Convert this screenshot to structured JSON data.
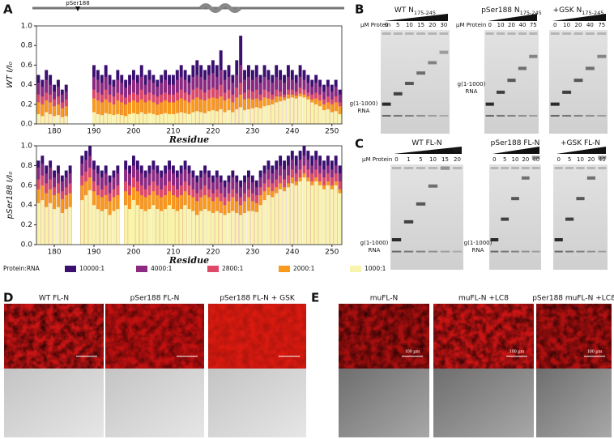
{
  "chart_data": [
    {
      "type": "bar",
      "ylabel": "WT I/I₀",
      "xlabel": "Residue",
      "x": [
        176,
        177,
        178,
        179,
        180,
        181,
        182,
        183,
        184,
        185,
        186,
        187,
        188,
        189,
        190,
        191,
        192,
        193,
        194,
        195,
        196,
        197,
        198,
        199,
        200,
        201,
        202,
        203,
        204,
        205,
        206,
        207,
        208,
        209,
        210,
        211,
        212,
        213,
        214,
        215,
        216,
        217,
        218,
        219,
        220,
        221,
        222,
        223,
        224,
        225,
        226,
        227,
        228,
        229,
        230,
        231,
        232,
        233,
        234,
        235,
        236,
        237,
        238,
        239,
        240,
        241,
        242,
        243,
        244,
        245,
        246,
        247,
        248,
        249,
        250,
        251,
        252
      ],
      "xlim": [
        175.5,
        252.5
      ],
      "xticks": [
        180,
        190,
        200,
        210,
        220,
        230,
        240,
        250
      ],
      "ylim": [
        0,
        1
      ],
      "yticks": [
        {
          "value": 0,
          "label": "0.0"
        },
        {
          "value": 0.2,
          "label": "0.2"
        },
        {
          "value": 0.4,
          "label": "0.4"
        },
        {
          "value": 0.6,
          "label": "0.6"
        },
        {
          "value": 0.8,
          "label": "0.8"
        },
        {
          "value": 1,
          "label": "1.0"
        }
      ],
      "series": [
        {
          "name": "10000:1",
          "color": "#3b0f70",
          "values": [
            0.5,
            0.45,
            0.55,
            0.5,
            0.4,
            0.45,
            0.35,
            0.4,
            null,
            null,
            null,
            null,
            null,
            null,
            0.6,
            0.55,
            0.5,
            0.6,
            0.5,
            0.45,
            0.55,
            0.5,
            0.45,
            0.5,
            0.55,
            0.5,
            0.6,
            0.5,
            0.55,
            0.5,
            0.45,
            0.5,
            0.55,
            0.5,
            0.5,
            0.55,
            0.6,
            0.55,
            0.5,
            0.6,
            0.65,
            0.6,
            0.55,
            0.6,
            0.65,
            0.6,
            0.75,
            0.55,
            0.6,
            0.5,
            0.65,
            0.9,
            0.55,
            0.6,
            0.55,
            0.6,
            0.5,
            0.6,
            0.55,
            0.5,
            0.6,
            0.55,
            0.5,
            0.6,
            0.55,
            0.5,
            0.6,
            0.55,
            0.5,
            0.45,
            0.5,
            0.45,
            0.4,
            0.45,
            0.4,
            0.45,
            0.35
          ]
        },
        {
          "name": "4000:1",
          "color": "#8c2981",
          "values": [
            0.42,
            0.38,
            0.45,
            0.4,
            0.33,
            0.38,
            0.3,
            0.33,
            null,
            null,
            null,
            null,
            null,
            null,
            0.48,
            0.45,
            0.42,
            0.48,
            0.4,
            0.38,
            0.45,
            0.42,
            0.37,
            0.4,
            0.45,
            0.42,
            0.48,
            0.4,
            0.45,
            0.42,
            0.38,
            0.42,
            0.45,
            0.4,
            0.4,
            0.45,
            0.48,
            0.45,
            0.42,
            0.48,
            0.5,
            0.48,
            0.45,
            0.5,
            0.52,
            0.48,
            0.55,
            0.45,
            0.48,
            0.42,
            0.5,
            0.6,
            0.45,
            0.48,
            0.45,
            0.48,
            0.42,
            0.48,
            0.45,
            0.42,
            0.48,
            0.45,
            0.42,
            0.48,
            0.45,
            0.42,
            0.48,
            0.45,
            0.42,
            0.38,
            0.42,
            0.38,
            0.33,
            0.38,
            0.33,
            0.38,
            0.3
          ]
        },
        {
          "name": "2800:1",
          "color": "#de4968",
          "values": [
            0.3,
            0.28,
            0.32,
            0.3,
            0.25,
            0.28,
            0.22,
            0.25,
            null,
            null,
            null,
            null,
            null,
            null,
            0.35,
            0.32,
            0.3,
            0.35,
            0.3,
            0.28,
            0.32,
            0.3,
            0.27,
            0.3,
            0.32,
            0.3,
            0.35,
            0.3,
            0.32,
            0.3,
            0.28,
            0.3,
            0.32,
            0.3,
            0.3,
            0.32,
            0.35,
            0.32,
            0.3,
            0.35,
            0.37,
            0.35,
            0.32,
            0.35,
            0.37,
            0.35,
            0.4,
            0.32,
            0.35,
            0.3,
            0.37,
            0.42,
            0.32,
            0.35,
            0.33,
            0.35,
            0.3,
            0.35,
            0.33,
            0.3,
            0.35,
            0.33,
            0.3,
            0.35,
            0.35,
            0.33,
            0.37,
            0.35,
            0.32,
            0.3,
            0.32,
            0.3,
            0.25,
            0.28,
            0.25,
            0.28,
            0.22
          ]
        },
        {
          "name": "2000:1",
          "color": "#f89a1c",
          "values": [
            0.22,
            0.2,
            0.24,
            0.22,
            0.18,
            0.2,
            0.16,
            0.18,
            null,
            null,
            null,
            null,
            null,
            null,
            0.26,
            0.24,
            0.22,
            0.25,
            0.22,
            0.2,
            0.24,
            0.22,
            0.2,
            0.22,
            0.24,
            0.22,
            0.25,
            0.22,
            0.24,
            0.22,
            0.2,
            0.22,
            0.24,
            0.22,
            0.22,
            0.24,
            0.26,
            0.24,
            0.22,
            0.25,
            0.27,
            0.25,
            0.24,
            0.26,
            0.27,
            0.26,
            0.28,
            0.24,
            0.26,
            0.22,
            0.27,
            0.3,
            0.25,
            0.26,
            0.25,
            0.26,
            0.24,
            0.27,
            0.26,
            0.25,
            0.28,
            0.28,
            0.27,
            0.3,
            0.3,
            0.29,
            0.31,
            0.3,
            0.28,
            0.25,
            0.26,
            0.24,
            0.2,
            0.22,
            0.2,
            0.22,
            0.18
          ]
        },
        {
          "name": "1000:1",
          "color": "#f8f4ad",
          "values": [
            0.1,
            0.08,
            0.12,
            0.1,
            0.08,
            0.09,
            0.07,
            0.08,
            null,
            null,
            null,
            null,
            null,
            null,
            0.12,
            0.1,
            0.09,
            0.11,
            0.1,
            0.09,
            0.1,
            0.09,
            0.08,
            0.1,
            0.11,
            0.1,
            0.12,
            0.1,
            0.11,
            0.1,
            0.09,
            0.1,
            0.11,
            0.1,
            0.1,
            0.11,
            0.12,
            0.11,
            0.1,
            0.12,
            0.13,
            0.12,
            0.11,
            0.13,
            0.14,
            0.13,
            0.15,
            0.12,
            0.14,
            0.12,
            0.15,
            0.17,
            0.14,
            0.15,
            0.16,
            0.17,
            0.16,
            0.18,
            0.19,
            0.2,
            0.22,
            0.23,
            0.24,
            0.26,
            0.27,
            0.26,
            0.28,
            0.27,
            0.25,
            0.22,
            0.2,
            0.18,
            0.14,
            0.15,
            0.12,
            0.13,
            0.1
          ]
        }
      ]
    },
    {
      "type": "bar",
      "ylabel": "pSer188 I/I₀",
      "xlabel": "Residue",
      "x": [
        176,
        177,
        178,
        179,
        180,
        181,
        182,
        183,
        184,
        185,
        186,
        187,
        188,
        189,
        190,
        191,
        192,
        193,
        194,
        195,
        196,
        197,
        198,
        199,
        200,
        201,
        202,
        203,
        204,
        205,
        206,
        207,
        208,
        209,
        210,
        211,
        212,
        213,
        214,
        215,
        216,
        217,
        218,
        219,
        220,
        221,
        222,
        223,
        224,
        225,
        226,
        227,
        228,
        229,
        230,
        231,
        232,
        233,
        234,
        235,
        236,
        237,
        238,
        239,
        240,
        241,
        242,
        243,
        244,
        245,
        246,
        247,
        248,
        249,
        250,
        251,
        252
      ],
      "xlim": [
        175.5,
        252.5
      ],
      "xticks": [
        180,
        190,
        200,
        210,
        220,
        230,
        240,
        250
      ],
      "ylim": [
        0,
        1
      ],
      "yticks": [
        {
          "value": 0,
          "label": "0.0"
        },
        {
          "value": 0.2,
          "label": "0.2"
        },
        {
          "value": 0.4,
          "label": "0.4"
        },
        {
          "value": 0.6,
          "label": "0.6"
        },
        {
          "value": 0.8,
          "label": "0.8"
        },
        {
          "value": 1,
          "label": "1.0"
        }
      ],
      "series": [
        {
          "color": "#3b0f70",
          "values": [
            0.85,
            0.9,
            0.8,
            0.85,
            0.75,
            0.8,
            0.7,
            0.75,
            0.8,
            null,
            null,
            0.9,
            0.95,
            1.0,
            0.85,
            0.8,
            0.75,
            0.8,
            0.7,
            0.75,
            0.8,
            null,
            0.85,
            0.8,
            0.9,
            0.85,
            0.8,
            0.75,
            0.8,
            0.85,
            0.8,
            0.75,
            0.8,
            0.85,
            0.8,
            0.75,
            0.8,
            0.85,
            0.8,
            0.75,
            0.7,
            0.75,
            0.8,
            0.75,
            0.7,
            0.75,
            0.7,
            0.65,
            0.7,
            0.75,
            0.7,
            0.65,
            0.7,
            0.75,
            0.7,
            0.65,
            0.75,
            0.8,
            0.85,
            0.8,
            0.85,
            0.9,
            0.85,
            0.9,
            0.95,
            0.9,
            0.95,
            1.0,
            0.95,
            0.9,
            0.95,
            0.9,
            0.85,
            0.9,
            0.85,
            0.9,
            0.8
          ]
        },
        {
          "color": "#8c2981",
          "values": [
            0.78,
            0.82,
            0.72,
            0.78,
            0.68,
            0.72,
            0.64,
            0.68,
            0.72,
            null,
            null,
            0.82,
            0.86,
            0.9,
            0.76,
            0.72,
            0.68,
            0.72,
            0.63,
            0.68,
            0.72,
            null,
            0.76,
            0.72,
            0.8,
            0.76,
            0.72,
            0.68,
            0.72,
            0.76,
            0.72,
            0.68,
            0.72,
            0.76,
            0.72,
            0.68,
            0.72,
            0.76,
            0.72,
            0.68,
            0.63,
            0.68,
            0.72,
            0.68,
            0.63,
            0.68,
            0.63,
            0.58,
            0.63,
            0.68,
            0.63,
            0.58,
            0.63,
            0.68,
            0.63,
            0.58,
            0.68,
            0.72,
            0.76,
            0.72,
            0.76,
            0.8,
            0.76,
            0.8,
            0.86,
            0.8,
            0.86,
            0.9,
            0.86,
            0.8,
            0.86,
            0.8,
            0.76,
            0.8,
            0.76,
            0.8,
            0.72
          ]
        },
        {
          "color": "#de4968",
          "values": [
            0.66,
            0.7,
            0.62,
            0.66,
            0.58,
            0.62,
            0.54,
            0.58,
            0.62,
            null,
            null,
            0.7,
            0.74,
            0.78,
            0.64,
            0.6,
            0.56,
            0.6,
            0.52,
            0.56,
            0.6,
            null,
            0.64,
            0.6,
            0.68,
            0.64,
            0.6,
            0.56,
            0.6,
            0.64,
            0.6,
            0.56,
            0.6,
            0.64,
            0.6,
            0.56,
            0.6,
            0.64,
            0.6,
            0.56,
            0.52,
            0.56,
            0.6,
            0.56,
            0.52,
            0.56,
            0.52,
            0.48,
            0.52,
            0.56,
            0.52,
            0.48,
            0.52,
            0.56,
            0.52,
            0.5,
            0.58,
            0.62,
            0.66,
            0.62,
            0.66,
            0.7,
            0.66,
            0.7,
            0.76,
            0.72,
            0.76,
            0.8,
            0.76,
            0.72,
            0.76,
            0.72,
            0.68,
            0.72,
            0.68,
            0.72,
            0.64
          ]
        },
        {
          "color": "#f89a1c",
          "values": [
            0.56,
            0.6,
            0.52,
            0.56,
            0.5,
            0.52,
            0.46,
            0.5,
            0.52,
            null,
            null,
            0.6,
            0.64,
            0.68,
            0.54,
            0.5,
            0.48,
            0.5,
            0.44,
            0.48,
            0.5,
            null,
            0.54,
            0.5,
            0.58,
            0.54,
            0.5,
            0.48,
            0.5,
            0.54,
            0.5,
            0.48,
            0.5,
            0.54,
            0.5,
            0.48,
            0.5,
            0.54,
            0.5,
            0.48,
            0.44,
            0.48,
            0.5,
            0.48,
            0.44,
            0.48,
            0.44,
            0.4,
            0.44,
            0.48,
            0.44,
            0.4,
            0.44,
            0.48,
            0.44,
            0.42,
            0.5,
            0.54,
            0.58,
            0.54,
            0.58,
            0.62,
            0.58,
            0.62,
            0.68,
            0.64,
            0.68,
            0.72,
            0.68,
            0.64,
            0.68,
            0.64,
            0.6,
            0.64,
            0.6,
            0.64,
            0.56
          ]
        },
        {
          "color": "#f8f4ad",
          "values": [
            0.42,
            0.45,
            0.38,
            0.42,
            0.36,
            0.38,
            0.32,
            0.36,
            0.38,
            null,
            null,
            0.45,
            0.5,
            0.55,
            0.4,
            0.36,
            0.34,
            0.36,
            0.3,
            0.34,
            0.36,
            null,
            0.4,
            0.36,
            0.45,
            0.4,
            0.36,
            0.34,
            0.36,
            0.4,
            0.36,
            0.34,
            0.36,
            0.4,
            0.36,
            0.34,
            0.36,
            0.4,
            0.36,
            0.34,
            0.3,
            0.34,
            0.36,
            0.34,
            0.32,
            0.34,
            0.32,
            0.3,
            0.32,
            0.34,
            0.32,
            0.3,
            0.32,
            0.34,
            0.34,
            0.33,
            0.4,
            0.45,
            0.5,
            0.48,
            0.52,
            0.56,
            0.54,
            0.58,
            0.62,
            0.6,
            0.64,
            0.68,
            0.64,
            0.6,
            0.64,
            0.6,
            0.56,
            0.6,
            0.56,
            0.6,
            0.52
          ]
        }
      ]
    }
  ],
  "panel_labels": [
    "A",
    "B",
    "C",
    "D",
    "E"
  ],
  "schematic": {
    "marker": "pSer188"
  },
  "legend_title": "Protein:RNA",
  "gels": {
    "axis_label": "µM Protein",
    "rna_label": [
      "g(1-1000)",
      "RNA"
    ],
    "B": [
      {
        "title": "WT N",
        "sub": "175-245",
        "lanes": [
          0,
          5,
          10,
          15,
          20,
          30
        ]
      },
      {
        "title": "pSer188 N",
        "sub": "175-245",
        "lanes": [
          0,
          10,
          20,
          40,
          75
        ]
      },
      {
        "title": "+GSK N",
        "sub": "175-245",
        "lanes": [
          0,
          10,
          20,
          40,
          75
        ]
      }
    ],
    "C": [
      {
        "title": "WT FL-N",
        "lanes": [
          0,
          1,
          5,
          10,
          15,
          20
        ]
      },
      {
        "title": "pSer188 FL-N",
        "lanes": [
          0,
          5,
          10,
          20,
          40
        ]
      },
      {
        "title": "+GSK FL-N",
        "lanes": [
          0,
          5,
          10,
          20,
          40
        ]
      }
    ]
  },
  "micrographs": {
    "D": [
      {
        "title": "WT FL-N"
      },
      {
        "title": "pSer188 FL-N"
      },
      {
        "title": "pSer188 FL-N + GSK"
      }
    ],
    "E": [
      {
        "title": "muFL-N",
        "scale": "100 µm"
      },
      {
        "title": "muFL-N +LC8",
        "scale": "100 µm"
      },
      {
        "title": "pSer188 muFL-N +LC8",
        "scale": "100 µm"
      }
    ]
  }
}
